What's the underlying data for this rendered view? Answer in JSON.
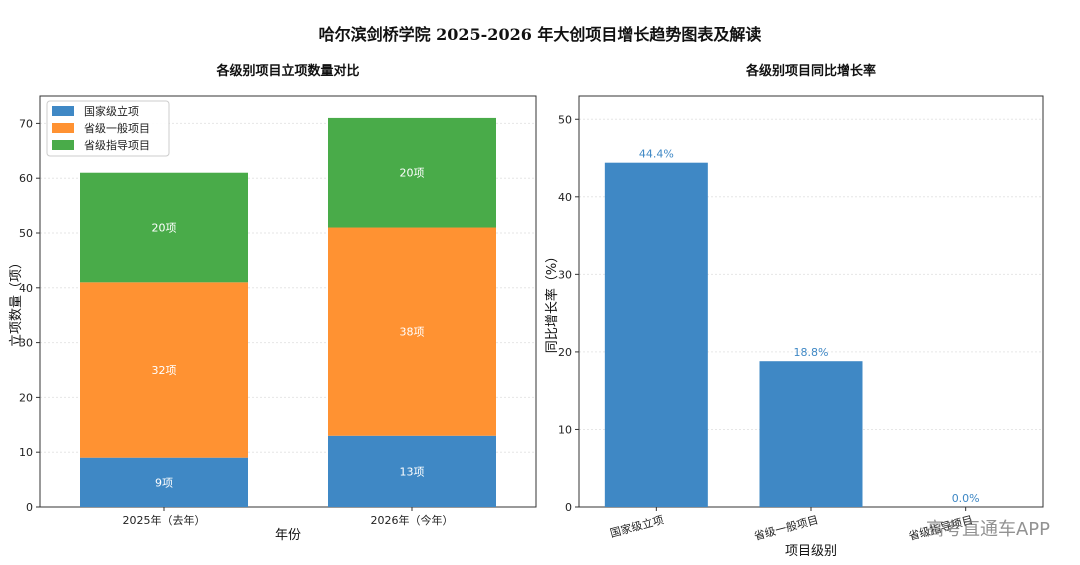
{
  "page_title": "哈尔滨剑桥学院 2025-2026 年大创项目增长趋势图表及解读",
  "watermark": "高考直通车APP",
  "colors": {
    "national": "#3f88c5",
    "provincial_general": "#ff9232",
    "provincial_guided": "#49ab49",
    "value_label": "#3f88c5",
    "bar_text": "#ffffff"
  },
  "chart_data": [
    {
      "type": "bar",
      "stacked": true,
      "title": "各级别项目立项数量对比",
      "xlabel": "年份",
      "ylabel": "立项数量（项）",
      "categories": [
        "2025年（去年）",
        "2026年（今年）"
      ],
      "ylim": [
        0,
        75
      ],
      "yticks": [
        0,
        10,
        20,
        30,
        40,
        50,
        60,
        70
      ],
      "grid": true,
      "legend": "top-left",
      "series": [
        {
          "name": "国家级立项",
          "color": "#3f88c5",
          "values": [
            9,
            13
          ],
          "labels": [
            "9项",
            "13项"
          ]
        },
        {
          "name": "省级一般项目",
          "color": "#ff9232",
          "values": [
            32,
            38
          ],
          "labels": [
            "32项",
            "38项"
          ]
        },
        {
          "name": "省级指导项目",
          "color": "#49ab49",
          "values": [
            20,
            20
          ],
          "labels": [
            "20项",
            "20项"
          ]
        }
      ]
    },
    {
      "type": "bar",
      "title": "各级别项目同比增长率",
      "xlabel": "项目级别",
      "ylabel": "同比增长率（%）",
      "categories": [
        "国家级立项",
        "省级一般项目",
        "省级指导项目"
      ],
      "values": [
        44.4,
        18.8,
        0.0
      ],
      "value_labels": [
        "44.4%",
        "18.8%",
        "0.0%"
      ],
      "ylim": [
        0,
        53
      ],
      "yticks": [
        0,
        10,
        20,
        30,
        40,
        50
      ],
      "grid": true,
      "color": "#3f88c5"
    }
  ]
}
